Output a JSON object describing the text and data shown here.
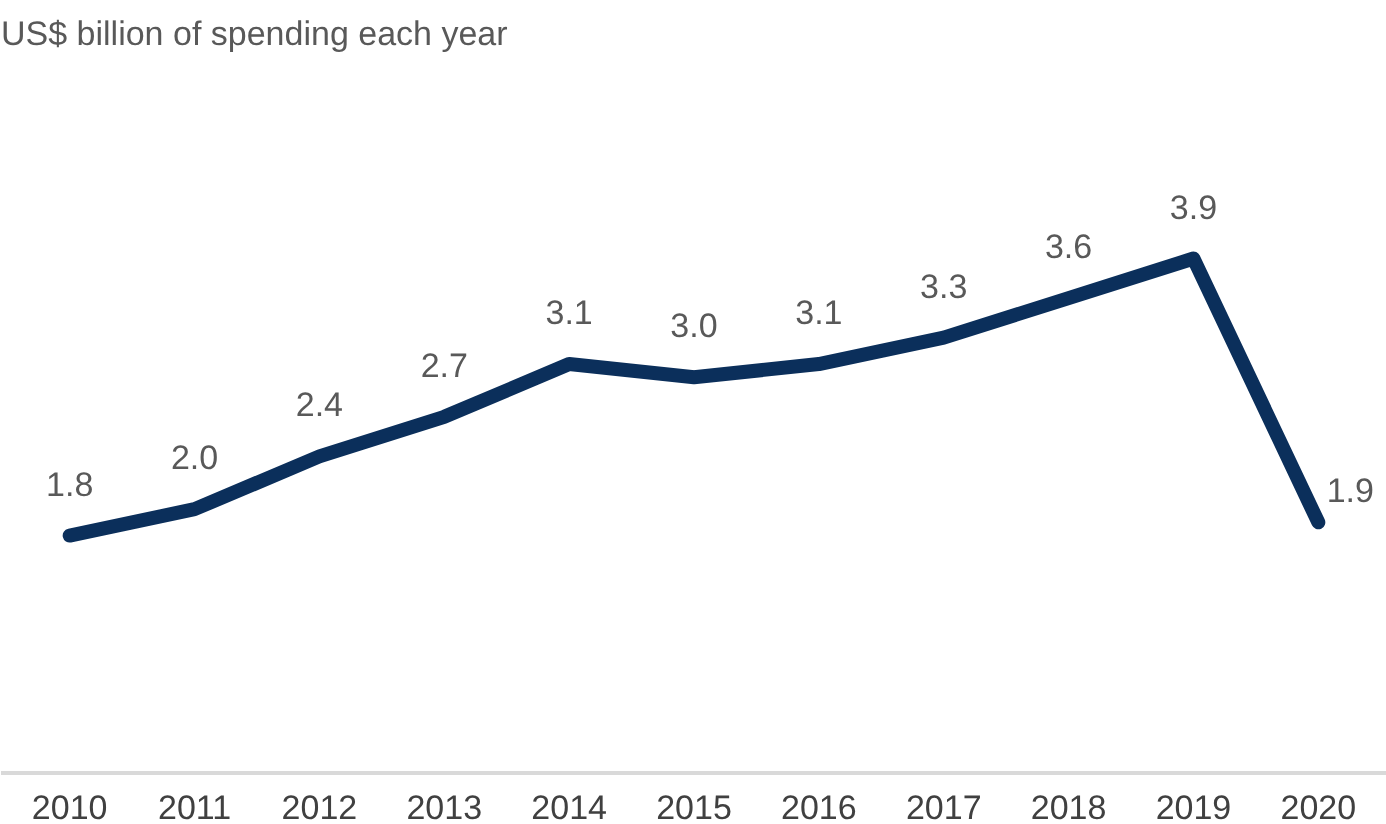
{
  "chart_data": {
    "type": "line",
    "title": "US$ billion of spending each year",
    "categories": [
      "2010",
      "2011",
      "2012",
      "2013",
      "2014",
      "2015",
      "2016",
      "2017",
      "2018",
      "2019",
      "2020"
    ],
    "series": [
      {
        "color": "#0b2f5b",
        "values": [
          1.8,
          2.0,
          2.4,
          2.7,
          3.1,
          3.0,
          3.1,
          3.3,
          3.6,
          3.9,
          1.9
        ],
        "value_labels": [
          "1.8",
          "2.0",
          "2.4",
          "2.7",
          "3.1",
          "3.0",
          "3.1",
          "3.3",
          "3.6",
          "3.9",
          "1.9"
        ]
      }
    ],
    "grid": false,
    "marker": "none",
    "line_style": "solid"
  }
}
